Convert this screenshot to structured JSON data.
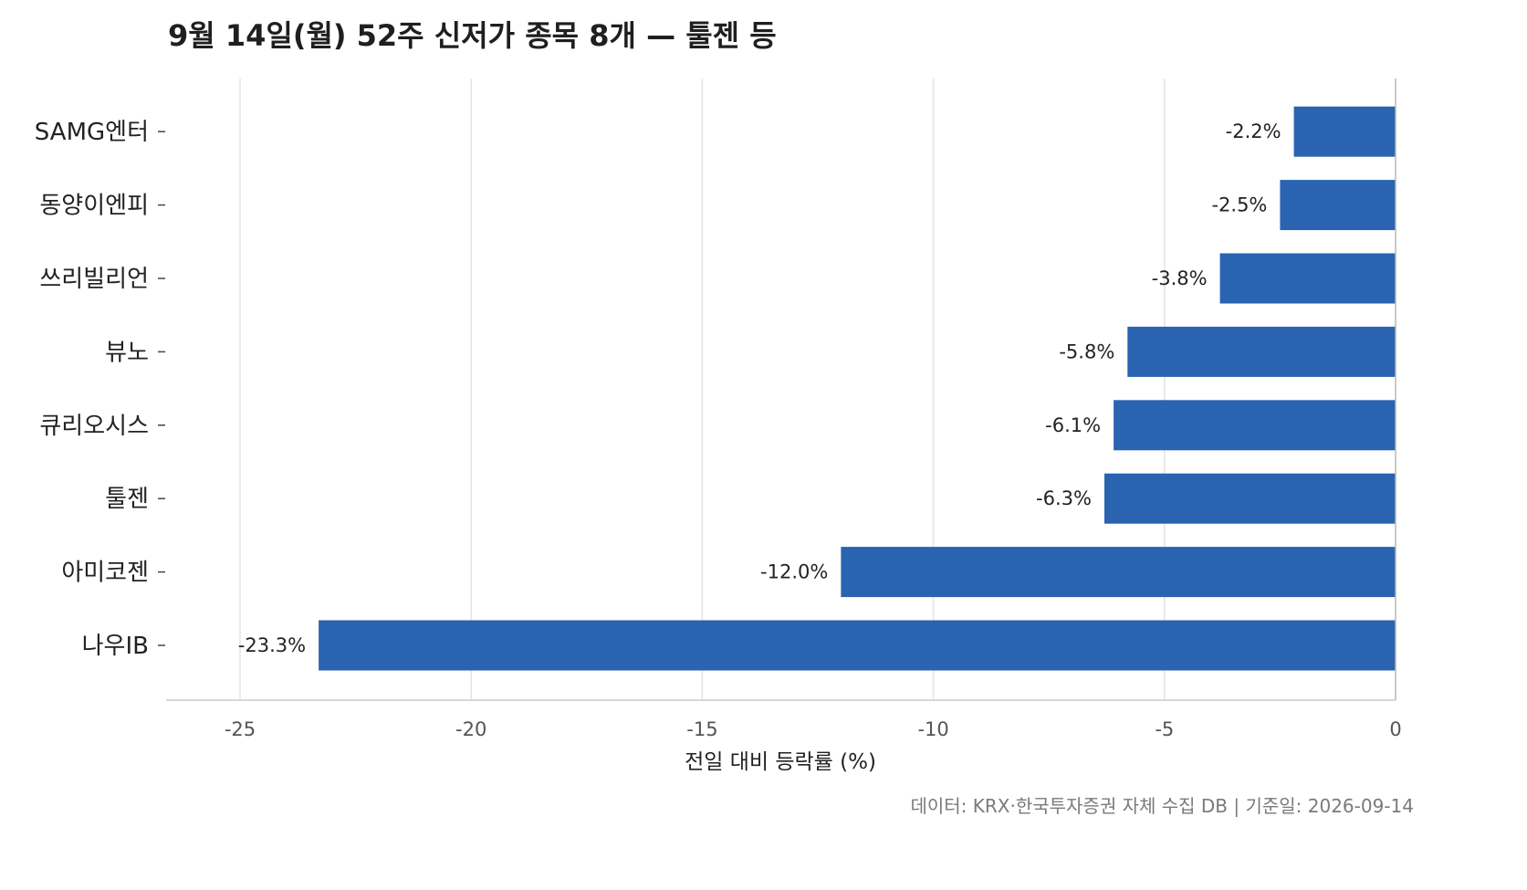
{
  "chart_data": {
    "type": "bar",
    "orientation": "horizontal",
    "title": "9월 14일(월) 52주 신저가 종목 8개 — 툴젠 등",
    "xlabel": "전일 대비 등락률 (%)",
    "ylabel": "",
    "xlim": [
      -26.6,
      0
    ],
    "x_ticks": [
      "-25",
      "-20",
      "-15",
      "-10",
      "-5",
      "0"
    ],
    "x_tick_values": [
      -25,
      -20,
      -15,
      -10,
      -5,
      0
    ],
    "grid": "vertical",
    "categories": [
      "SAMG엔터",
      "동양이엔피",
      "쓰리빌리언",
      "뷰노",
      "큐리오시스",
      "툴젠",
      "아미코젠",
      "나우IB"
    ],
    "values": [
      -2.2,
      -2.5,
      -3.8,
      -5.8,
      -6.1,
      -6.3,
      -12.0,
      -23.3
    ],
    "value_labels": [
      "-2.2%",
      "-2.5%",
      "-3.8%",
      "-5.8%",
      "-6.1%",
      "-6.3%",
      "-12.0%",
      "-23.3%"
    ],
    "bar_color": "#2a63b0",
    "footer": "데이터: KRX·한국투자증권 자체 수집 DB  |  기준일: 2026-09-14"
  }
}
